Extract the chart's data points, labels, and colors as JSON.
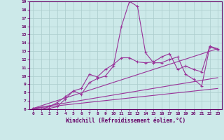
{
  "background_color": "#cce9e9",
  "grid_color": "#aacccc",
  "line_color": "#993399",
  "marker_color": "#993399",
  "xlabel": "Windchill (Refroidissement éolien,°C)",
  "xlim": [
    -0.5,
    23.5
  ],
  "ylim": [
    6,
    19
  ],
  "xticks": [
    0,
    1,
    2,
    3,
    4,
    5,
    6,
    7,
    8,
    9,
    10,
    11,
    12,
    13,
    14,
    15,
    16,
    17,
    18,
    19,
    20,
    21,
    22,
    23
  ],
  "yticks": [
    6,
    7,
    8,
    9,
    10,
    11,
    12,
    13,
    14,
    15,
    16,
    17,
    18,
    19
  ],
  "lines": [
    {
      "x": [
        0,
        1,
        2,
        3,
        4,
        5,
        6,
        7,
        8,
        9,
        10,
        11,
        12,
        13,
        14,
        15,
        16,
        17,
        18,
        19,
        20,
        21,
        22,
        23
      ],
      "y": [
        6.1,
        6.0,
        6.1,
        6.3,
        7.2,
        8.2,
        7.8,
        9.2,
        9.7,
        10.0,
        11.2,
        16.0,
        19.0,
        18.4,
        12.8,
        11.6,
        11.6,
        12.0,
        12.3,
        10.2,
        9.6,
        8.8,
        13.5,
        13.2
      ],
      "has_markers": true
    },
    {
      "x": [
        0,
        1,
        2,
        3,
        4,
        5,
        6,
        7,
        8,
        9,
        10,
        11,
        12,
        13,
        14,
        15,
        16,
        17,
        18,
        19,
        20,
        21,
        22,
        23
      ],
      "y": [
        6.1,
        6.0,
        6.3,
        6.8,
        7.5,
        8.2,
        8.5,
        10.2,
        9.9,
        10.8,
        11.4,
        12.2,
        12.2,
        11.7,
        11.6,
        11.7,
        12.3,
        12.7,
        10.8,
        11.2,
        10.8,
        10.5,
        13.6,
        13.3
      ],
      "has_markers": true
    },
    {
      "x": [
        0,
        23
      ],
      "y": [
        6.1,
        13.3
      ],
      "has_markers": false
    },
    {
      "x": [
        0,
        23
      ],
      "y": [
        6.1,
        9.8
      ],
      "has_markers": false
    },
    {
      "x": [
        0,
        23
      ],
      "y": [
        6.1,
        8.5
      ],
      "has_markers": false
    }
  ]
}
